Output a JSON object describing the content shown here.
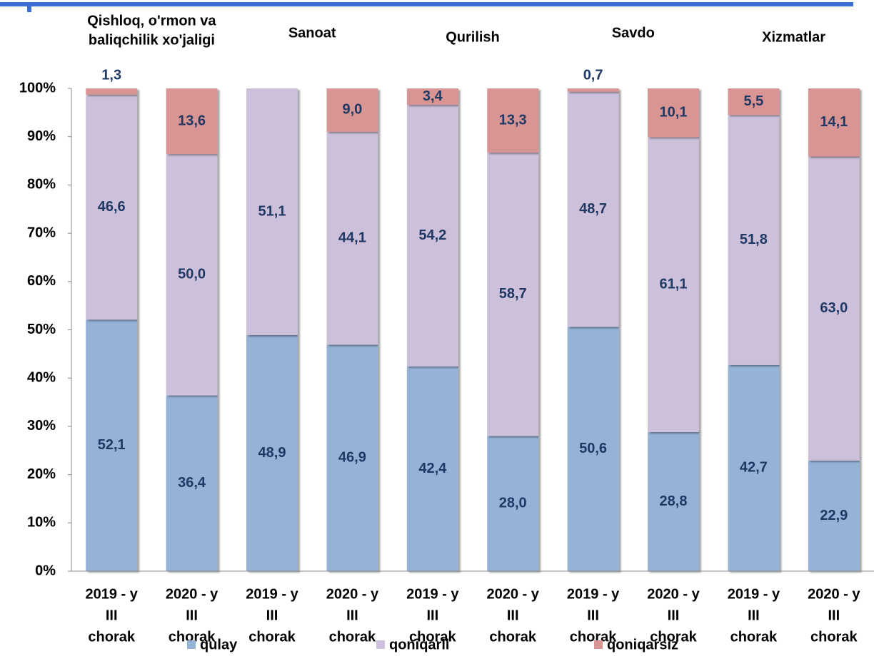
{
  "chart_data": {
    "type": "stacked_bar",
    "groups": [
      [
        "Qishloq, o'rmon va",
        "baliqchilik xo'jaligi"
      ],
      [
        "Sanoat"
      ],
      [
        "Qurilish"
      ],
      [
        "Savdo"
      ],
      [
        "Xizmatlar"
      ]
    ],
    "categories": [
      [
        "2019 - y",
        "III",
        "chorak"
      ],
      [
        "2020 - y",
        "III",
        "chorak"
      ],
      [
        "2019 - y",
        "III",
        "chorak"
      ],
      [
        "2020 - y",
        "III",
        "chorak"
      ],
      [
        "2019 - y",
        "III",
        "chorak"
      ],
      [
        "2020 - y",
        "III",
        "chorak"
      ],
      [
        "2019 - y",
        "III",
        "chorak"
      ],
      [
        "2020 - y",
        "III",
        "chorak"
      ],
      [
        "2019 - y",
        "III",
        "chorak"
      ],
      [
        "2020 - y",
        "III",
        "chorak"
      ]
    ],
    "series": [
      {
        "name": "qulay",
        "color": "#95b3d7",
        "values": [
          52.1,
          36.4,
          48.9,
          46.9,
          42.4,
          28.0,
          50.6,
          28.8,
          42.7,
          22.9
        ],
        "value_labels": [
          "52,1",
          "36,4",
          "48,9",
          "46,9",
          "42,4",
          "28,0",
          "50,6",
          "28,8",
          "42,7",
          "22,9"
        ]
      },
      {
        "name": "qoniqarli",
        "color": "#ccc0da",
        "values": [
          46.6,
          50.0,
          51.1,
          44.1,
          54.2,
          58.7,
          48.7,
          61.1,
          51.8,
          63.0
        ],
        "value_labels": [
          "46,6",
          "50,0",
          "51,1",
          "44,1",
          "54,2",
          "58,7",
          "48,7",
          "61,1",
          "51,8",
          "63,0"
        ]
      },
      {
        "name": "qoniqarsiz",
        "color": "#d99594",
        "values": [
          1.3,
          13.6,
          null,
          9.0,
          3.4,
          13.3,
          0.7,
          10.1,
          5.5,
          14.1
        ],
        "value_labels": [
          "1,3",
          "13,6",
          null,
          "9,0",
          "3,4",
          "13,3",
          "0,7",
          "10,1",
          "5,5",
          "14,1"
        ]
      }
    ],
    "ylim": [
      0,
      100
    ],
    "yticks": [
      {
        "value": 0,
        "label": "0%"
      },
      {
        "value": 10,
        "label": "10%"
      },
      {
        "value": 20,
        "label": "20%"
      },
      {
        "value": 30,
        "label": "30%"
      },
      {
        "value": 40,
        "label": "40%"
      },
      {
        "value": 50,
        "label": "50%"
      },
      {
        "value": 60,
        "label": "60%"
      },
      {
        "value": 70,
        "label": "70%"
      },
      {
        "value": 80,
        "label": "80%"
      },
      {
        "value": 90,
        "label": "90%"
      },
      {
        "value": 100,
        "label": "100%"
      }
    ],
    "legend": "bottom",
    "grid": false
  }
}
